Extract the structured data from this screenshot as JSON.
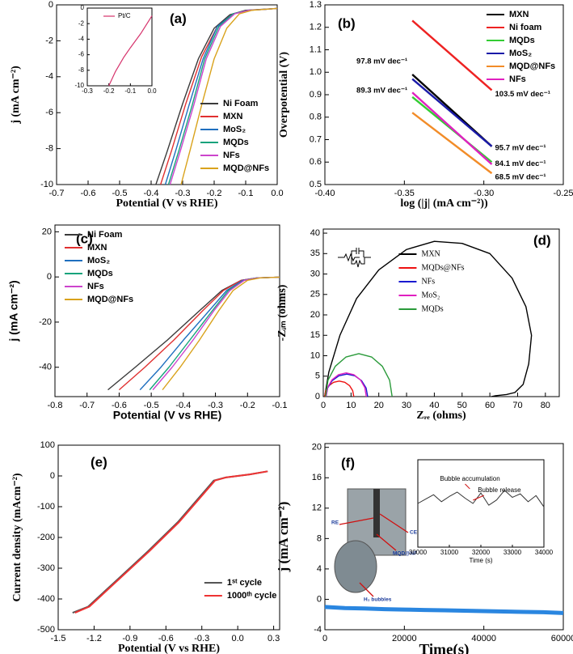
{
  "chart_data": [
    {
      "type": "line",
      "panel": "(a)",
      "xlabel": "Potential (V vs RHE)",
      "ylabel": "j (mA cm⁻²)",
      "xlim": [
        -0.7,
        0.0
      ],
      "xticks": [
        -0.7,
        -0.6,
        -0.5,
        -0.4,
        -0.3,
        -0.2,
        -0.1,
        {
          "value": 0,
          "label": "0.0"
        }
      ],
      "ylim": [
        -10,
        0
      ],
      "yticks": [
        -10,
        -8,
        -6,
        -4,
        -2,
        0
      ],
      "grid": false,
      "legend": "lower right",
      "series": [
        {
          "name": "Ni Foam",
          "color": "#3a3a3a",
          "x": [
            -0.385,
            -0.35,
            -0.3,
            -0.25,
            -0.2,
            -0.15,
            -0.1,
            -0.05,
            0
          ],
          "values": [
            -10,
            -8.2,
            -5.5,
            -3.0,
            -1.3,
            -0.55,
            -0.3,
            -0.25,
            -0.2
          ]
        },
        {
          "name": "MXN",
          "color": "#e03030",
          "x": [
            -0.37,
            -0.335,
            -0.29,
            -0.24,
            -0.19,
            -0.14,
            -0.09,
            -0.04,
            0
          ],
          "values": [
            -10,
            -8.1,
            -5.5,
            -2.9,
            -1.2,
            -0.5,
            -0.3,
            -0.25,
            -0.2
          ]
        },
        {
          "name": "MoS₂",
          "color": "#1f6fbf",
          "x": [
            -0.355,
            -0.32,
            -0.28,
            -0.235,
            -0.19,
            -0.14,
            -0.09,
            -0.04,
            0
          ],
          "values": [
            -10,
            -8,
            -5.6,
            -3,
            -1.2,
            -0.5,
            -0.3,
            -0.25,
            -0.2
          ]
        },
        {
          "name": "MQDs",
          "color": "#17a37c",
          "x": [
            -0.345,
            -0.31,
            -0.27,
            -0.23,
            -0.185,
            -0.14,
            -0.09,
            -0.04,
            0
          ],
          "values": [
            -10,
            -8,
            -5.6,
            -3,
            -1.2,
            -0.5,
            -0.3,
            -0.25,
            -0.2
          ]
        },
        {
          "name": "NFs",
          "color": "#cc44cc",
          "x": [
            -0.34,
            -0.305,
            -0.265,
            -0.225,
            -0.18,
            -0.135,
            -0.09,
            -0.04,
            0
          ],
          "values": [
            -10,
            -8,
            -5.6,
            -3,
            -1.2,
            -0.5,
            -0.3,
            -0.25,
            -0.2
          ]
        },
        {
          "name": "MQD@NFs",
          "color": "#d9a21b",
          "x": [
            -0.305,
            -0.275,
            -0.24,
            -0.2,
            -0.16,
            -0.12,
            -0.08,
            -0.04,
            0
          ],
          "values": [
            -10,
            -8,
            -5.6,
            -3,
            -1.3,
            -0.5,
            -0.3,
            -0.25,
            -0.2
          ]
        }
      ],
      "inset": {
        "type": "line",
        "xlim": [
          -0.3,
          0.0
        ],
        "xticks": [
          -0.3,
          -0.2,
          -0.1,
          {
            "value": 0,
            "label": "0.0"
          }
        ],
        "ylim": [
          -10,
          0
        ],
        "yticks": [
          -10,
          -8,
          -6,
          -4,
          -2,
          0
        ],
        "legend": "upper right",
        "series": [
          {
            "name": "Pt/C",
            "color": "#d6336c",
            "x": [
              -0.2,
              -0.17,
              -0.13,
              -0.1,
              -0.05,
              0
            ],
            "values": [
              -10,
              -8.2,
              -6.3,
              -5.1,
              -3.2,
              -1.0
            ]
          }
        ]
      }
    },
    {
      "type": "line",
      "panel": "(b)",
      "xlabel": "log (|j| (mA cm⁻²))",
      "ylabel": "Overpotential (V)",
      "xlim": [
        -0.4,
        -0.25
      ],
      "xticks": [
        {
          "value": -0.4,
          "label": "-0.40"
        },
        {
          "value": -0.35,
          "label": "-0.35"
        },
        {
          "value": -0.3,
          "label": "-0.30"
        },
        {
          "value": -0.25,
          "label": "-0.25"
        }
      ],
      "ylim": [
        0.5,
        1.3
      ],
      "yticks": [
        0.5,
        0.6,
        0.7,
        0.8,
        0.9,
        {
          "value": 1,
          "label": "1.0"
        },
        1.1,
        1.2,
        1.3
      ],
      "grid": false,
      "legend": "upper right",
      "series": [
        {
          "name": "MXN",
          "color": "#000000",
          "label": "97.8 mV dec⁻¹",
          "x": [
            -0.345,
            -0.295
          ],
          "values": [
            0.99,
            0.67
          ]
        },
        {
          "name": "Ni foam",
          "color": "#ee2222",
          "label": "103.5 mV dec⁻¹",
          "x": [
            -0.345,
            -0.295
          ],
          "values": [
            1.23,
            0.92
          ]
        },
        {
          "name": "MQDs",
          "color": "#33cc33",
          "label": "84.1 mV dec⁻¹",
          "x": [
            -0.345,
            -0.295
          ],
          "values": [
            0.89,
            0.6
          ]
        },
        {
          "name": "MoS₂",
          "color": "#1a1aa8",
          "label": "95.7 mV dec⁻¹",
          "x": [
            -0.345,
            -0.295
          ],
          "values": [
            0.97,
            0.67
          ]
        },
        {
          "name": "MQD@NFs",
          "color": "#f28c28",
          "label": "68.5 mV dec⁻¹",
          "x": [
            -0.345,
            -0.295
          ],
          "values": [
            0.82,
            0.55
          ]
        },
        {
          "name": "NFs",
          "color": "#e020c0",
          "label": "89.3 mV dec⁻¹",
          "x": [
            -0.345,
            -0.295
          ],
          "values": [
            0.91,
            0.59
          ]
        }
      ]
    },
    {
      "type": "line",
      "panel": "(c)",
      "xlabel": "Potential (V vs RHE)",
      "ylabel": "j (mA cm⁻²)",
      "xlim": [
        -0.8,
        -0.1
      ],
      "xticks": [
        -0.8,
        -0.7,
        -0.6,
        -0.5,
        -0.4,
        -0.3,
        -0.2,
        -0.1
      ],
      "ylim": [
        -53,
        23
      ],
      "yticks": [
        -40,
        -20,
        0,
        20
      ],
      "grid": false,
      "legend": "upper left",
      "series": [
        {
          "name": "Ni Foam",
          "color": "#3a3a3a",
          "x": [
            -0.635,
            -0.55,
            -0.45,
            -0.35,
            -0.28,
            -0.22,
            -0.17,
            -0.1
          ],
          "values": [
            -50,
            -40,
            -28,
            -15,
            -6,
            -1.5,
            -0.4,
            -0.1
          ]
        },
        {
          "name": "MXN",
          "color": "#e03030",
          "x": [
            -0.6,
            -0.52,
            -0.43,
            -0.34,
            -0.275,
            -0.22,
            -0.17,
            -0.1
          ],
          "values": [
            -50,
            -40,
            -28,
            -15,
            -6,
            -1.5,
            -0.4,
            -0.1
          ]
        },
        {
          "name": "MoS₂",
          "color": "#1f6fbf",
          "x": [
            -0.535,
            -0.47,
            -0.4,
            -0.32,
            -0.265,
            -0.215,
            -0.17,
            -0.1
          ],
          "values": [
            -50,
            -40,
            -28,
            -15,
            -6,
            -1.5,
            -0.4,
            -0.1
          ]
        },
        {
          "name": "MQDs",
          "color": "#17a37c",
          "x": [
            -0.505,
            -0.445,
            -0.38,
            -0.31,
            -0.26,
            -0.21,
            -0.165,
            -0.1
          ],
          "values": [
            -50,
            -40,
            -28,
            -15,
            -6,
            -1.5,
            -0.4,
            -0.1
          ]
        },
        {
          "name": "NFs",
          "color": "#cc44cc",
          "x": [
            -0.495,
            -0.435,
            -0.37,
            -0.305,
            -0.255,
            -0.21,
            -0.165,
            -0.1
          ],
          "values": [
            -50,
            -40,
            -28,
            -15,
            -6,
            -1.5,
            -0.4,
            -0.1
          ]
        },
        {
          "name": "MQD@NFs",
          "color": "#d9a21b",
          "x": [
            -0.465,
            -0.41,
            -0.35,
            -0.29,
            -0.245,
            -0.2,
            -0.16,
            -0.1
          ],
          "values": [
            -50,
            -40,
            -28,
            -15,
            -6,
            -1.5,
            -0.4,
            -0.1
          ]
        }
      ]
    },
    {
      "type": "line",
      "panel": "(d)",
      "xlabel": "Zᵣₑ (ohms)",
      "ylabel": "-Zᵢₘ (ohms)",
      "xlim": [
        0,
        85
      ],
      "xticks": [
        0,
        10,
        20,
        30,
        40,
        50,
        60,
        70,
        80
      ],
      "ylim": [
        0,
        41
      ],
      "yticks": [
        0,
        5,
        10,
        15,
        20,
        25,
        30,
        35,
        40
      ],
      "grid": false,
      "legend": "center",
      "series": [
        {
          "name": "MXN",
          "color": "#000000",
          "x": [
            0.5,
            2,
            6,
            12,
            20,
            30,
            40,
            50,
            60,
            68,
            73,
            75,
            74,
            72,
            69,
            66,
            62,
            60.5
          ],
          "values": [
            0,
            6,
            15,
            24,
            31,
            36,
            38,
            37.5,
            35,
            29,
            22,
            15,
            8,
            3,
            1,
            0.5,
            0.2,
            0
          ]
        },
        {
          "name": "MQDs@NFs",
          "color": "#ee1111",
          "x": [
            0.5,
            0.9,
            2.04,
            3.74,
            5.75,
            7.76,
            9.46,
            10.6,
            11
          ],
          "values": [
            0,
            1.46,
            2.69,
            3.51,
            3.8,
            3.51,
            2.69,
            1.46,
            0
          ]
        },
        {
          "name": "NFs",
          "color": "#1a1ad0",
          "x": [
            1,
            1.57,
            3.2,
            5.63,
            8.5,
            11.37,
            13.8,
            15.43,
            16
          ],
          "values": [
            0,
            2.11,
            3.89,
            5.08,
            5.5,
            5.08,
            3.89,
            2.11,
            0
          ]
        },
        {
          "name": "MoS₂",
          "color": "#e020c0",
          "x": [
            1,
            1.55,
            3.12,
            5.47,
            8.25,
            11.03,
            13.38,
            14.95,
            15.5
          ],
          "values": [
            0,
            2.22,
            4.1,
            5.36,
            5.8,
            5.36,
            4.1,
            2.22,
            0
          ]
        },
        {
          "name": "MQDs",
          "color": "#2a9a3a",
          "x": [
            0.8,
            1.71,
            4.32,
            8.2,
            12.8,
            17.4,
            21.28,
            23.89,
            24.8
          ],
          "values": [
            0,
            4.02,
            7.42,
            9.7,
            10.5,
            9.7,
            7.42,
            4.02,
            0
          ]
        }
      ]
    },
    {
      "type": "line",
      "panel": "(e)",
      "xlabel": "Potential (V vs RHE)",
      "ylabel": "Current density (mAcm⁻²)",
      "xlim": [
        -1.5,
        0.35
      ],
      "xticks": [
        -1.5,
        -1.2,
        -0.9,
        -0.6,
        -0.3,
        {
          "value": 0,
          "label": "0.0"
        },
        0.3
      ],
      "ylim": [
        -500,
        100
      ],
      "yticks": [
        -500,
        -400,
        -300,
        -200,
        -100,
        0,
        100
      ],
      "grid": false,
      "legend": "lower right",
      "series": [
        {
          "name": "1ˢᵗ cycle",
          "color": "#555555",
          "x": [
            -1.38,
            -1.25,
            -1.0,
            -0.75,
            -0.5,
            -0.3,
            -0.2,
            -0.1,
            0.1,
            0.25
          ],
          "values": [
            -445,
            -425,
            -335,
            -245,
            -150,
            -60,
            -15,
            -5,
            5,
            15
          ]
        },
        {
          "name": "1000ᵗʰ cycle",
          "color": "#ee3333",
          "x": [
            -1.36,
            -1.24,
            -0.99,
            -0.74,
            -0.49,
            -0.29,
            -0.19,
            -0.1,
            0.1,
            0.25
          ],
          "values": [
            -445,
            -425,
            -335,
            -245,
            -150,
            -60,
            -15,
            -5,
            5,
            15
          ]
        }
      ]
    },
    {
      "type": "line",
      "panel": "(f)",
      "xlabel": "Time(s)",
      "ylabel": "j (mA cm⁻²)",
      "xlim": [
        0,
        60000
      ],
      "xticks": [
        0,
        20000,
        40000,
        60000
      ],
      "ylim": [
        -4,
        20.5
      ],
      "yticks": [
        -4,
        0,
        4,
        8,
        12,
        16,
        20
      ],
      "grid": false,
      "photo_labels": [
        "RE",
        "CE",
        "MQD@NF",
        "H₂ bubbles"
      ],
      "series": [
        {
          "color": "#2a86e0",
          "x": [
            0,
            5000,
            10000,
            15000,
            20000,
            25000,
            30000,
            35000,
            40000,
            45000,
            50000,
            55000,
            60000
          ],
          "values": [
            -1.0,
            -1.15,
            -1.2,
            -1.3,
            -1.35,
            -1.4,
            -1.45,
            -1.5,
            -1.55,
            -1.6,
            -1.65,
            -1.7,
            -1.8
          ]
        }
      ],
      "inset": {
        "type": "line",
        "xlabel": "Time (s)",
        "xlim": [
          30000,
          34000
        ],
        "xticks": [
          30000,
          31000,
          32000,
          33000,
          34000
        ],
        "ylim": [
          6,
          16
        ],
        "annotations": [
          "Bubble accumulation",
          "Bubble release"
        ],
        "series": [
          {
            "color": "#333333",
            "x": [
              30000,
              30250,
              30500,
              30750,
              31000,
              31250,
              31500,
              31750,
              32000,
              32250,
              32500,
              32750,
              33000,
              33250,
              33500,
              33750,
              34000
            ],
            "values": [
              11,
              11.5,
              12,
              11.2,
              11.8,
              12.3,
              11.6,
              11,
              12.2,
              10.8,
              11.4,
              12.5,
              11.7,
              12.1,
              11.2,
              11.9,
              10.6
            ]
          }
        ]
      }
    }
  ]
}
